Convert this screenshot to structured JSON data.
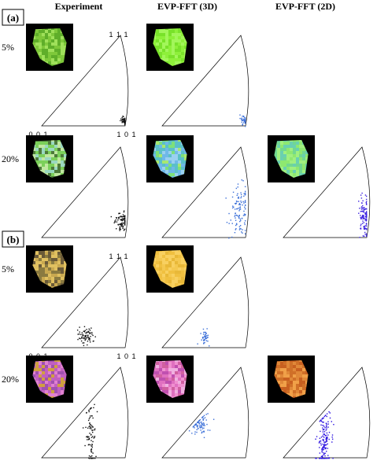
{
  "columns": [
    "Experiment",
    "EVP-FFT (3D)",
    "EVP-FFT (2D)"
  ],
  "panels": [
    {
      "letter": "(a)",
      "rows": [
        {
          "strain": "5%",
          "cells": [
            {
              "has_map": true,
              "map_colors": [
                "#7ec83a",
                "#5fae2a",
                "#9fe05a"
              ],
              "pole_color": "#111111",
              "cluster": [
                0.98,
                0.06,
                0.025,
                0.02,
                40
              ],
              "axis_labels": {
                "top": "1 1 1",
                "left": "0 0 1",
                "right": "1 0 1"
              }
            },
            {
              "has_map": true,
              "map_colors": [
                "#8ef03a",
                "#79e22a",
                "#a2f65a"
              ],
              "pole_color": "#3b6fd8",
              "cluster": [
                0.98,
                0.07,
                0.025,
                0.025,
                35
              ]
            },
            {
              "has_map": false
            }
          ]
        },
        {
          "strain": "20%",
          "cells": [
            {
              "has_map": true,
              "map_colors": [
                "#7bd05a",
                "#9ad8c0",
                "#4d7a3a",
                "#c0e8a0"
              ],
              "pole_color": "#111111",
              "cluster": [
                0.96,
                0.18,
                0.04,
                0.045,
                90
              ]
            },
            {
              "has_map": true,
              "map_colors": [
                "#7de07a",
                "#6fb8e8",
                "#a8e870",
                "#5ac0c8",
                "#9ad0f0"
              ],
              "pole_color": "#3b6fd8",
              "cluster": [
                0.93,
                0.3,
                0.06,
                0.14,
                110
              ]
            },
            {
              "has_map": true,
              "map_colors": [
                "#8ee870",
                "#72d890",
                "#a0f080",
                "#6ad0b0"
              ],
              "pole_color": "#3b22e0",
              "cluster": [
                0.97,
                0.22,
                0.035,
                0.1,
                120
              ]
            }
          ]
        }
      ]
    },
    {
      "letter": "(b)",
      "rows": [
        {
          "strain": "5%",
          "cells": [
            {
              "has_map": true,
              "map_colors": [
                "#c8a850",
                "#8a7a40",
                "#e0c060",
                "#6a5a38"
              ],
              "pole_color": "#111111",
              "cluster": [
                0.52,
                0.12,
                0.05,
                0.05,
                70
              ],
              "axis_labels": {
                "top": "1 1 1",
                "left": "0 0 1",
                "right": "1 0 1"
              }
            },
            {
              "has_map": true,
              "map_colors": [
                "#f0c040",
                "#f4c850",
                "#e8b838",
                "#f8d060"
              ],
              "pole_color": "#3b6fd8",
              "cluster": [
                0.5,
                0.12,
                0.025,
                0.04,
                40
              ]
            },
            {
              "has_map": false
            }
          ]
        },
        {
          "strain": "20%",
          "cells": [
            {
              "has_map": true,
              "map_colors": [
                "#c060c0",
                "#a050b0",
                "#e080d0",
                "#d0a040"
              ],
              "pole_color": "#111111",
              "cluster": [
                0.58,
                0.25,
                0.03,
                0.22,
                90
              ]
            },
            {
              "has_map": true,
              "map_colors": [
                "#e070c0",
                "#c050b0",
                "#f090d0",
                "#d060a0",
                "#f0b0e0"
              ],
              "pole_color": "#3b6fd8",
              "cluster": [
                0.45,
                0.38,
                0.05,
                0.07,
                80
              ]
            },
            {
              "has_map": true,
              "map_colors": [
                "#e08838",
                "#d07028",
                "#f0a048",
                "#c86020"
              ],
              "pole_color": "#2a10e0",
              "cluster": [
                0.48,
                0.2,
                0.04,
                0.18,
                150
              ]
            }
          ]
        }
      ]
    }
  ]
}
